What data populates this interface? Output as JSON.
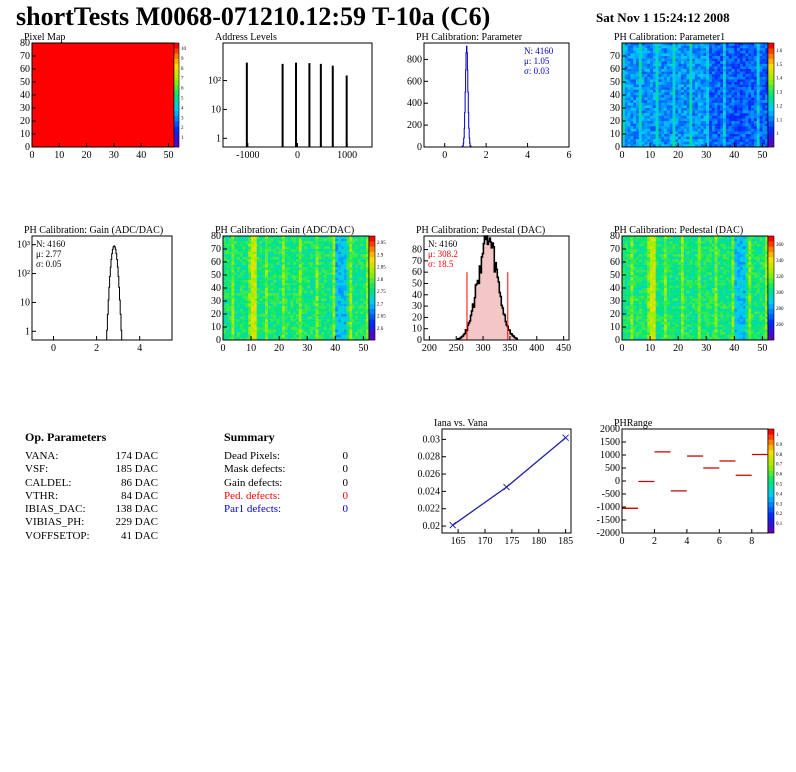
{
  "header": {
    "title": "shortTests M0068-071210.12:59 T-10a (C6)",
    "date": "Sat Nov  1 15:24:12 2008"
  },
  "op_params": {
    "heading": "Op. Parameters",
    "rows": [
      {
        "k": "VANA:",
        "v": "174 DAC"
      },
      {
        "k": "VSF:",
        "v": "185 DAC"
      },
      {
        "k": "CALDEL:",
        "v": "86 DAC"
      },
      {
        "k": "VTHR:",
        "v": "84 DAC"
      },
      {
        "k": "IBIAS_DAC:",
        "v": "138 DAC"
      },
      {
        "k": "VIBIAS_PH:",
        "v": "229 DAC"
      },
      {
        "k": "VOFFSETOP:",
        "v": "41 DAC"
      }
    ]
  },
  "summary": {
    "heading": "Summary",
    "rows": [
      {
        "k": "Dead Pixels:",
        "v": "0",
        "color": "#000000"
      },
      {
        "k": "Mask defects:",
        "v": "0",
        "color": "#000000"
      },
      {
        "k": "Gain defects:",
        "v": "0",
        "color": "#000000"
      },
      {
        "k": "Ped. defects:",
        "v": "0",
        "color": "#ff0000"
      },
      {
        "k": "Par1 defects:",
        "v": "0",
        "color": "#0000cc"
      }
    ]
  },
  "chart_data": [
    {
      "type": "heatmap",
      "title": "Pixel Map",
      "xlim": [
        0,
        52
      ],
      "ylim": [
        0,
        80
      ],
      "xticks": [
        "0",
        "10",
        "20",
        "30",
        "40",
        "50"
      ],
      "yticks": [
        "0",
        "10",
        "20",
        "30",
        "40",
        "50",
        "60",
        "70",
        "80"
      ],
      "colorbar_ticks": [
        "1",
        "2",
        "3",
        "4",
        "5",
        "6",
        "7",
        "8",
        "9",
        "10"
      ],
      "uniform_value": 10,
      "fill_color": "#ff0000"
    },
    {
      "type": "bar",
      "title": "Address Levels",
      "xlim": [
        -1500,
        1500
      ],
      "yscale": "log",
      "ylim": [
        0.5,
        2000
      ],
      "xticks": [
        "-1000",
        "0",
        "1000"
      ],
      "yticks": [
        "1",
        "10",
        "10²"
      ],
      "peaks": [
        {
          "x": -1020,
          "y": 420
        },
        {
          "x": -300,
          "y": 380
        },
        {
          "x": -30,
          "y": 420
        },
        {
          "x": 240,
          "y": 400
        },
        {
          "x": 470,
          "y": 380
        },
        {
          "x": 710,
          "y": 330
        },
        {
          "x": 990,
          "y": 150
        }
      ]
    },
    {
      "type": "bar",
      "title": "PH Calibration: Parameter",
      "xlim": [
        -1,
        6
      ],
      "ylim": [
        0,
        950
      ],
      "xticks": [
        "0",
        "2",
        "4",
        "6"
      ],
      "yticks": [
        "0",
        "200",
        "400",
        "600",
        "800"
      ],
      "stats": {
        "n": "N: 4160",
        "mean": "μ: 1.05",
        "sigma": "σ: 0.03",
        "color": "#0000cc"
      },
      "peak": {
        "center": 1.05,
        "height": 920,
        "width": 0.12
      }
    },
    {
      "type": "heatmap",
      "title": "PH Calibration: Parameter1",
      "xlim": [
        0,
        52
      ],
      "ylim": [
        0,
        80
      ],
      "xticks": [
        "0",
        "10",
        "20",
        "30",
        "40",
        "50"
      ],
      "yticks": [
        "0",
        "10",
        "20",
        "30",
        "40",
        "50",
        "60",
        "70"
      ],
      "colorbar_ticks": [
        "1",
        "1.1",
        "1.2",
        "1.3",
        "1.4",
        "1.5",
        "1.6"
      ],
      "palette": "blue"
    },
    {
      "type": "bar",
      "title": "PH Calibration: Gain (ADC/DAC)",
      "xlim": [
        -1,
        5.5
      ],
      "yscale": "log",
      "ylim": [
        0.5,
        2000
      ],
      "xticks": [
        "0",
        "2",
        "4"
      ],
      "yticks": [
        "1",
        "10",
        "10²",
        "10³"
      ],
      "stats": {
        "n": "N: 4160",
        "mean": "μ: 2.77",
        "sigma": "σ: 0.05",
        "color": "#000000"
      },
      "peak": {
        "center": 2.8,
        "height": 900,
        "width": 0.18
      }
    },
    {
      "type": "heatmap",
      "title": "PH Calibration: Gain (ADC/DAC)",
      "xlim": [
        0,
        52
      ],
      "ylim": [
        0,
        80
      ],
      "xticks": [
        "0",
        "10",
        "20",
        "30",
        "40",
        "50"
      ],
      "yticks": [
        "0",
        "10",
        "20",
        "30",
        "40",
        "50",
        "60",
        "70",
        "80"
      ],
      "colorbar_ticks": [
        "2.6",
        "2.65",
        "2.7",
        "2.75",
        "2.8",
        "2.85",
        "2.9",
        "2.95"
      ],
      "palette": "green"
    },
    {
      "type": "bar",
      "title": "PH Calibration: Pedestal (DAC)",
      "xlim": [
        190,
        460
      ],
      "ylim": [
        0,
        92
      ],
      "xticks": [
        "200",
        "250",
        "300",
        "350",
        "400",
        "450"
      ],
      "yticks": [
        "0",
        "10",
        "20",
        "30",
        "40",
        "50",
        "60",
        "70",
        "80"
      ],
      "stats": {
        "n": "N: 4160",
        "mean": "μ: 308.2",
        "sigma": "σ: 18.5",
        "mean_color": "#ff0000",
        "color": "#000000"
      },
      "peak": {
        "center": 308,
        "height": 88,
        "width": 18.5
      },
      "markers": [
        270,
        346
      ]
    },
    {
      "type": "heatmap",
      "title": "PH Calibration: Pedestal (DAC)",
      "xlim": [
        0,
        52
      ],
      "ylim": [
        0,
        80
      ],
      "xticks": [
        "0",
        "10",
        "20",
        "30",
        "40",
        "50"
      ],
      "yticks": [
        "0",
        "10",
        "20",
        "30",
        "40",
        "50",
        "60",
        "70",
        "80"
      ],
      "colorbar_ticks": [
        "260",
        "280",
        "300",
        "320",
        "340",
        "360"
      ],
      "palette": "green"
    },
    {
      "type": "line",
      "title": "Iana vs. Vana",
      "xlim": [
        162,
        186
      ],
      "ylim": [
        0.0192,
        0.0312
      ],
      "xticks": [
        "165",
        "170",
        "175",
        "180",
        "185"
      ],
      "yticks": [
        "0.02",
        "0.022",
        "0.024",
        "0.026",
        "0.028",
        "0.03"
      ],
      "x": [
        164,
        174,
        185
      ],
      "y": [
        0.0201,
        0.0245,
        0.0302
      ]
    },
    {
      "type": "scatter",
      "title": "PHRange",
      "xlim": [
        0,
        9
      ],
      "ylim": [
        -2000,
        2000
      ],
      "xticks": [
        "0",
        "2",
        "4",
        "6",
        "8"
      ],
      "yticks": [
        "-2000",
        "-1500",
        "-1000",
        "-500",
        "0",
        "500",
        "1000",
        "1500",
        "2000"
      ],
      "colorbar_ticks": [
        "0.1",
        "0.2",
        "0.3",
        "0.4",
        "0.5",
        "0.6",
        "0.7",
        "0.8",
        "0.9",
        "1"
      ],
      "x": [
        0.5,
        1.5,
        2.5,
        3.5,
        4.5,
        5.5,
        6.5,
        7.5,
        8.5
      ],
      "y": [
        -1050,
        -20,
        1120,
        -380,
        960,
        500,
        770,
        220,
        1020
      ]
    }
  ]
}
